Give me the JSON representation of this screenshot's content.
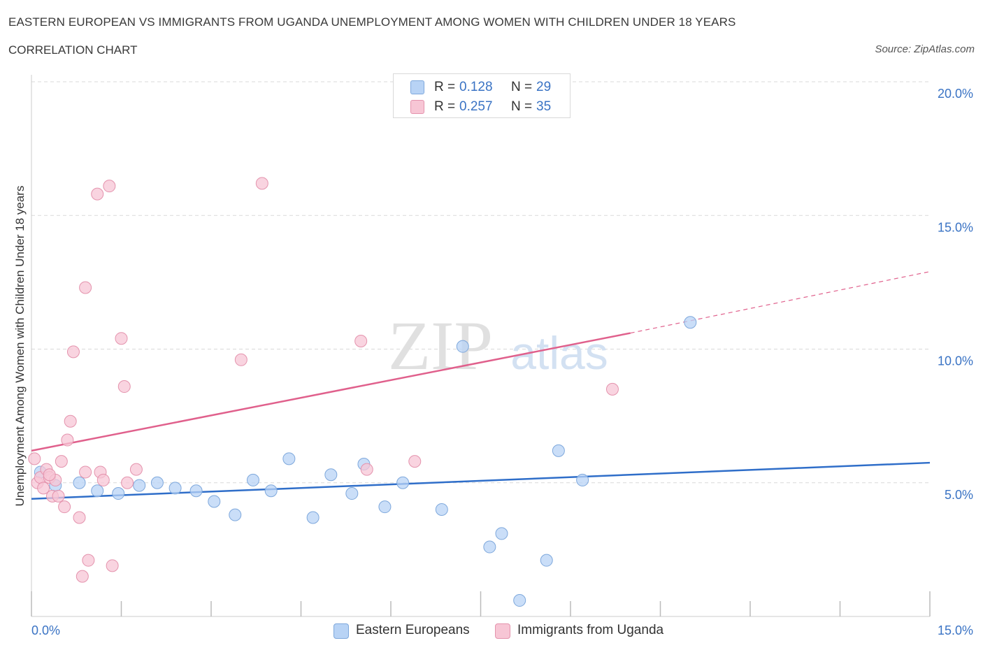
{
  "title": "EASTERN EUROPEAN VS IMMIGRANTS FROM UGANDA UNEMPLOYMENT AMONG WOMEN WITH CHILDREN UNDER 18 YEARS",
  "subtitle": "CORRELATION CHART",
  "source": "Source: ZipAtlas.com",
  "watermark": {
    "zip": "ZIP",
    "atlas": "atlas"
  },
  "legend": {
    "r_label": "R =",
    "n_label": "N =",
    "rows": [
      {
        "r": "0.128",
        "n": "29"
      },
      {
        "r": "0.257",
        "n": "35"
      }
    ]
  },
  "bottom_legend": [
    "Eastern Europeans",
    "Immigrants from Uganda"
  ],
  "colors": {
    "blue_fill": "#b8d3f5",
    "blue_stroke": "#7ea8dc",
    "blue_line": "#2f6ec9",
    "pink_fill": "#f7c6d5",
    "pink_stroke": "#e493ad",
    "pink_line": "#e0608c",
    "axis_text": "#3a73c4",
    "grid": "#d9d9d9"
  },
  "chart_data": {
    "type": "scatter",
    "ylabel": "Unemployment Among Women with Children Under 18 years",
    "xlim": [
      0,
      15
    ],
    "ylim": [
      0,
      20
    ],
    "x_tick_labels": [
      "0.0%",
      "15.0%"
    ],
    "y_ticks": [
      5,
      10,
      15,
      20
    ],
    "y_tick_labels": [
      "5.0%",
      "10.0%",
      "15.0%",
      "20.0%"
    ],
    "grid": true,
    "series": [
      {
        "name": "Eastern Europeans",
        "color": "blue",
        "points": [
          [
            0.15,
            5.4
          ],
          [
            0.4,
            4.9
          ],
          [
            0.8,
            5.0
          ],
          [
            1.1,
            4.7
          ],
          [
            1.45,
            4.6
          ],
          [
            1.8,
            4.9
          ],
          [
            2.1,
            5.0
          ],
          [
            2.4,
            4.8
          ],
          [
            2.75,
            4.7
          ],
          [
            3.05,
            4.3
          ],
          [
            3.4,
            3.8
          ],
          [
            3.7,
            5.1
          ],
          [
            4.0,
            4.7
          ],
          [
            4.3,
            5.9
          ],
          [
            4.7,
            3.7
          ],
          [
            5.0,
            5.3
          ],
          [
            5.35,
            4.6
          ],
          [
            5.55,
            5.7
          ],
          [
            5.9,
            4.1
          ],
          [
            6.2,
            5.0
          ],
          [
            6.85,
            4.0
          ],
          [
            7.2,
            10.1
          ],
          [
            7.65,
            2.6
          ],
          [
            7.85,
            3.1
          ],
          [
            8.15,
            0.6
          ],
          [
            8.6,
            2.1
          ],
          [
            8.8,
            6.2
          ],
          [
            9.2,
            5.1
          ],
          [
            11.0,
            11.0
          ]
        ],
        "trend": {
          "x": [
            0,
            15
          ],
          "y": [
            4.4,
            5.75
          ]
        }
      },
      {
        "name": "Immigrants from Uganda",
        "color": "pink",
        "points": [
          [
            0.05,
            5.9
          ],
          [
            0.1,
            5.0
          ],
          [
            0.15,
            5.2
          ],
          [
            0.2,
            4.8
          ],
          [
            0.25,
            5.5
          ],
          [
            0.3,
            5.2
          ],
          [
            0.35,
            4.5
          ],
          [
            0.4,
            5.1
          ],
          [
            0.45,
            4.5
          ],
          [
            0.5,
            5.8
          ],
          [
            0.55,
            4.1
          ],
          [
            0.6,
            6.6
          ],
          [
            0.65,
            7.3
          ],
          [
            0.7,
            9.9
          ],
          [
            0.8,
            3.7
          ],
          [
            0.85,
            1.5
          ],
          [
            0.9,
            12.3
          ],
          [
            0.9,
            5.4
          ],
          [
            0.95,
            2.1
          ],
          [
            1.1,
            15.8
          ],
          [
            1.15,
            5.4
          ],
          [
            1.2,
            5.1
          ],
          [
            1.3,
            16.1
          ],
          [
            1.35,
            1.9
          ],
          [
            1.5,
            10.4
          ],
          [
            1.55,
            8.6
          ],
          [
            1.6,
            5.0
          ],
          [
            1.75,
            5.5
          ],
          [
            3.5,
            9.6
          ],
          [
            3.85,
            16.2
          ],
          [
            5.5,
            10.3
          ],
          [
            5.6,
            5.5
          ],
          [
            6.4,
            5.8
          ],
          [
            9.7,
            8.5
          ],
          [
            0.3,
            5.3
          ]
        ],
        "trend": {
          "x": [
            0,
            10.0
          ],
          "y": [
            6.2,
            10.6
          ]
        },
        "trend_dashed": {
          "x": [
            10.0,
            15
          ],
          "y": [
            10.6,
            12.9
          ]
        }
      }
    ]
  }
}
